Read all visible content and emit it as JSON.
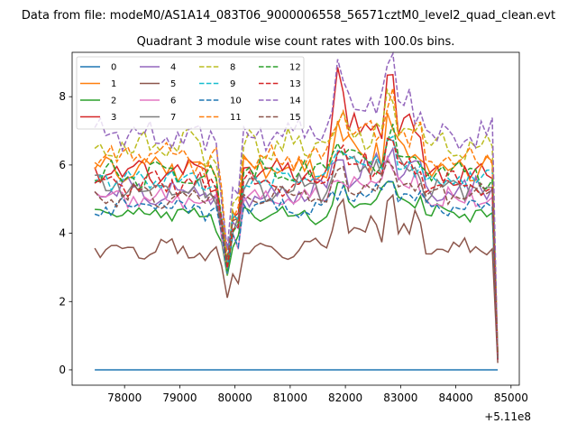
{
  "chart_data": {
    "type": "line",
    "suptitle": "Data from file: modeM0/AS1A14_083T06_9000006558_56571cztM0_level2_quad_clean.evt",
    "title": "Quadrant 3 module wise count rates with 100.0s bins.",
    "xlabel": "",
    "ylabel": "",
    "x_offset_label": "+5.11e8",
    "xlim": [
      77050,
      85150
    ],
    "ylim": [
      -0.45,
      9.3
    ],
    "x_ticks": [
      78000,
      79000,
      80000,
      81000,
      82000,
      83000,
      84000,
      85000
    ],
    "x_tick_labels": [
      "78000",
      "79000",
      "80000",
      "81000",
      "82000",
      "83000",
      "84000",
      "85000"
    ],
    "y_ticks": [
      0,
      2,
      4,
      6,
      8
    ],
    "y_tick_labels": [
      "0",
      "2",
      "4",
      "6",
      "8"
    ],
    "x_range": {
      "start": 77460,
      "end": 84760,
      "step": 100
    },
    "legend": {
      "location": "upper-left",
      "columns": 4
    },
    "series": [
      {
        "name": "0",
        "color": "#1f77b4",
        "dash": "solid",
        "base": 0.0,
        "amp": 0,
        "dip": 0,
        "burst": 0,
        "end": 0.0,
        "seed": 1
      },
      {
        "name": "1",
        "color": "#ff7f0e",
        "dash": "solid",
        "base": 5.9,
        "amp": 0.3,
        "dip": 2.9,
        "burst": 0.8,
        "end": 0.5,
        "seed": 2
      },
      {
        "name": "2",
        "color": "#2ca02c",
        "dash": "solid",
        "base": 4.55,
        "amp": 0.2,
        "dip": 1.8,
        "burst": 0.6,
        "end": 0.5,
        "seed": 3
      },
      {
        "name": "3",
        "color": "#d62728",
        "dash": "solid",
        "base": 5.8,
        "amp": 0.3,
        "dip": 2.9,
        "burst": 1.8,
        "end": 0.4,
        "seed": 4
      },
      {
        "name": "4",
        "color": "#9467bd",
        "dash": "solid",
        "base": 5.2,
        "amp": 0.3,
        "dip": 2.0,
        "burst": 0.8,
        "end": 0.4,
        "seed": 5
      },
      {
        "name": "5",
        "color": "#8c564b",
        "dash": "solid",
        "base": 3.55,
        "amp": 0.2,
        "dip": 1.6,
        "burst": 0.9,
        "end": 0.2,
        "seed": 6
      },
      {
        "name": "6",
        "color": "#e377c2",
        "dash": "solid",
        "base": 5.05,
        "amp": 0.25,
        "dip": 2.3,
        "burst": 0.6,
        "end": 0.3,
        "seed": 7
      },
      {
        "name": "7",
        "color": "#7f7f7f",
        "dash": "solid",
        "base": 5.3,
        "amp": 0.3,
        "dip": 2.0,
        "burst": 0.8,
        "end": 0.3,
        "seed": 8
      },
      {
        "name": "8",
        "color": "#bcbd22",
        "dash": "dashed",
        "base": 6.6,
        "amp": 0.35,
        "dip": 3.5,
        "burst": 0.6,
        "end": 0.4,
        "seed": 9
      },
      {
        "name": "9",
        "color": "#17becf",
        "dash": "dashed",
        "base": 5.6,
        "amp": 0.25,
        "dip": 2.5,
        "burst": 0.6,
        "end": 0.3,
        "seed": 10
      },
      {
        "name": "10",
        "color": "#1f77b4",
        "dash": "dashed",
        "base": 4.75,
        "amp": 0.2,
        "dip": 2.0,
        "burst": 0.4,
        "end": 0.3,
        "seed": 11
      },
      {
        "name": "11",
        "color": "#ff7f0e",
        "dash": "dashed",
        "base": 6.2,
        "amp": 0.3,
        "dip": 3.0,
        "burst": 1.1,
        "end": 0.4,
        "seed": 12
      },
      {
        "name": "12",
        "color": "#2ca02c",
        "dash": "dashed",
        "base": 5.75,
        "amp": 0.3,
        "dip": 2.8,
        "burst": 0.7,
        "end": 0.4,
        "seed": 13
      },
      {
        "name": "13",
        "color": "#d62728",
        "dash": "dashed",
        "base": 5.45,
        "amp": 0.25,
        "dip": 2.4,
        "burst": 0.8,
        "end": 0.3,
        "seed": 14
      },
      {
        "name": "14",
        "color": "#9467bd",
        "dash": "dashed",
        "base": 6.9,
        "amp": 0.35,
        "dip": 3.4,
        "burst": 1.4,
        "end": 0.3,
        "seed": 15
      },
      {
        "name": "15",
        "color": "#8c564b",
        "dash": "dashed",
        "base": 5.1,
        "amp": 0.25,
        "dip": 2.1,
        "burst": 0.5,
        "end": 0.3,
        "seed": 16
      }
    ]
  }
}
